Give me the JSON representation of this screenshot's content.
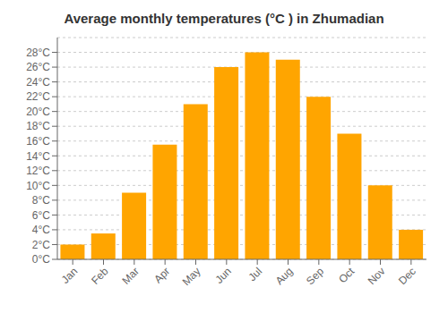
{
  "chart_data": {
    "type": "bar",
    "title": "Average monthly temperatures (°C ) in Zhumadian",
    "categories": [
      "Jan",
      "Feb",
      "Mar",
      "Apr",
      "May",
      "Jun",
      "Jul",
      "Aug",
      "Sep",
      "Oct",
      "Nov",
      "Dec"
    ],
    "values": [
      2,
      3.5,
      9,
      15.5,
      21,
      26,
      28,
      27,
      22,
      17,
      10,
      4
    ],
    "color": "#FFA500",
    "ylim": [
      0,
      30
    ],
    "yticks": [
      {
        "value": 0,
        "label": "0°C"
      },
      {
        "value": 2,
        "label": "2°C"
      },
      {
        "value": 4,
        "label": "4°C"
      },
      {
        "value": 6,
        "label": "6°C"
      },
      {
        "value": 8,
        "label": "8°C"
      },
      {
        "value": 10,
        "label": "10°C"
      },
      {
        "value": 12,
        "label": "12°C"
      },
      {
        "value": 14,
        "label": "14°C"
      },
      {
        "value": 16,
        "label": "16°C"
      },
      {
        "value": 18,
        "label": "18°C"
      },
      {
        "value": 20,
        "label": "20°C"
      },
      {
        "value": 22,
        "label": "22°C"
      },
      {
        "value": 24,
        "label": "24°C"
      },
      {
        "value": 26,
        "label": "26°C"
      },
      {
        "value": 28,
        "label": "28°C"
      }
    ],
    "grid": true
  }
}
